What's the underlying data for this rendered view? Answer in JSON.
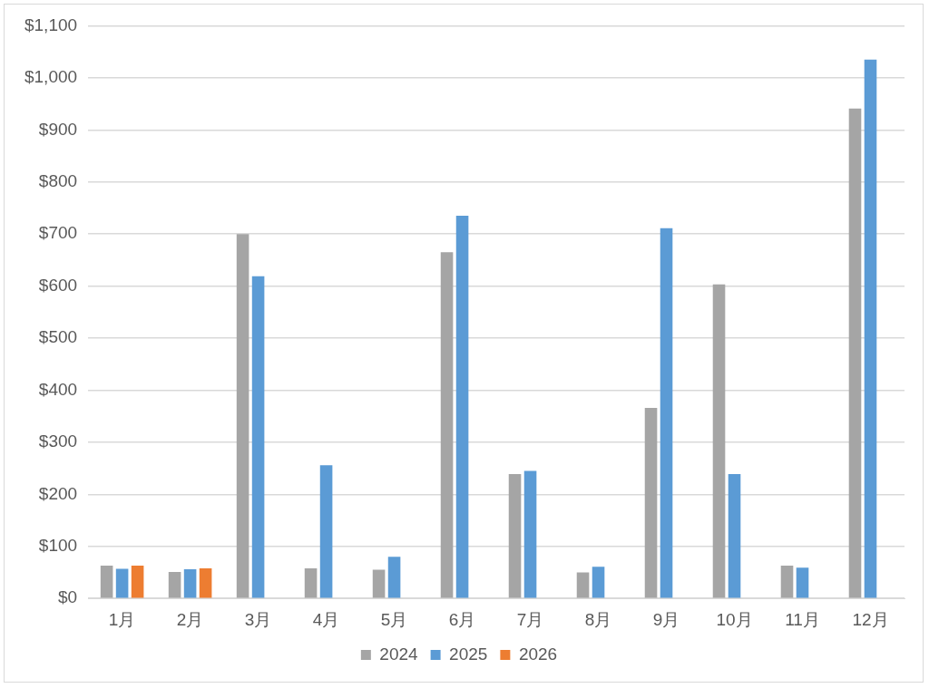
{
  "chart_data": {
    "type": "bar",
    "categories": [
      "1月",
      "2月",
      "3月",
      "4月",
      "5月",
      "6月",
      "7月",
      "8月",
      "9月",
      "10月",
      "11月",
      "12月"
    ],
    "series": [
      {
        "name": "2024",
        "color": "#a5a5a5",
        "values": [
          63,
          51,
          700,
          58,
          55,
          665,
          239,
          50,
          366,
          603,
          63,
          941
        ]
      },
      {
        "name": "2025",
        "color": "#5b9bd5",
        "values": [
          57,
          56,
          619,
          256,
          80,
          735,
          245,
          61,
          711,
          239,
          59,
          1035
        ]
      },
      {
        "name": "2026",
        "color": "#ed7d31",
        "values": [
          63,
          58,
          null,
          null,
          null,
          null,
          null,
          null,
          null,
          null,
          null,
          null
        ]
      }
    ],
    "ylim": [
      0,
      1100
    ],
    "yticks": [
      {
        "value": 0,
        "label": "$0"
      },
      {
        "value": 100,
        "label": "$100"
      },
      {
        "value": 200,
        "label": "$200"
      },
      {
        "value": 300,
        "label": "$300"
      },
      {
        "value": 400,
        "label": "$400"
      },
      {
        "value": 500,
        "label": "$500"
      },
      {
        "value": 600,
        "label": "$600"
      },
      {
        "value": 700,
        "label": "$700"
      },
      {
        "value": 800,
        "label": "$800"
      },
      {
        "value": 900,
        "label": "$900"
      },
      {
        "value": 1000,
        "label": "$1,000"
      },
      {
        "value": 1100,
        "label": "$1,100"
      }
    ],
    "grid": "y",
    "legend": "bottom"
  }
}
